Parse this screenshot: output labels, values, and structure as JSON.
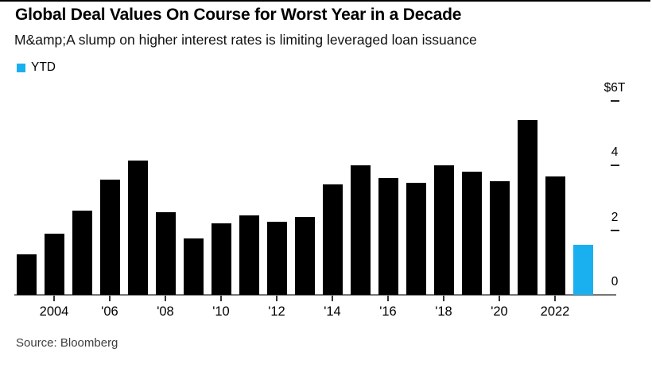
{
  "header": {
    "title": "Global Deal Values On Course for Worst Year in a Decade",
    "subtitle": "M&amp;A slump on higher interest rates is limiting leveraged loan issuance"
  },
  "footer": {
    "source": "Source: Bloomberg"
  },
  "colors": {
    "bar_black": "#000000",
    "ytd_blue": "#1ab0f0",
    "axis_gray": "#767676",
    "source_text": "#3d3d3d"
  },
  "chart_data": {
    "type": "bar",
    "title": "Global Deal Values On Course for Worst Year in a Decade",
    "subtitle": "M&amp;A slump on higher interest rates is limiting leveraged loan issuance",
    "unit": "trillion USD",
    "categories": [
      2003,
      2004,
      2005,
      2006,
      2007,
      2008,
      2009,
      2010,
      2011,
      2012,
      2013,
      2014,
      2015,
      2016,
      2017,
      2018,
      2019,
      2020,
      2021,
      2022,
      2023
    ],
    "series": [
      {
        "name": "Global deal values",
        "values": [
          1.25,
          1.9,
          2.6,
          3.55,
          4.15,
          2.55,
          1.75,
          2.2,
          2.45,
          2.25,
          2.4,
          3.4,
          4.0,
          3.6,
          3.45,
          4.0,
          3.8,
          3.5,
          5.4,
          3.65,
          1.55
        ]
      }
    ],
    "bar_color": "#000000",
    "highlight": {
      "category": 2023,
      "label": "YTD",
      "color": "#1ab0f0"
    },
    "legend": [
      {
        "label": "YTD",
        "color": "#1ab0f0"
      }
    ],
    "legend_position": "top-left",
    "axis_side": "right",
    "grid": "none",
    "ylim": [
      0,
      6
    ],
    "y_ticks": [
      {
        "value": 6,
        "label": "$6T"
      },
      {
        "value": 4,
        "label": "4"
      },
      {
        "value": 2,
        "label": "2"
      },
      {
        "value": 0,
        "label": "0"
      }
    ],
    "x_ticks": [
      {
        "value": 2004,
        "label": "2004"
      },
      {
        "value": 2006,
        "label": "'06"
      },
      {
        "value": 2008,
        "label": "'08"
      },
      {
        "value": 2010,
        "label": "'10"
      },
      {
        "value": 2012,
        "label": "'12"
      },
      {
        "value": 2014,
        "label": "'14"
      },
      {
        "value": 2016,
        "label": "'16"
      },
      {
        "value": 2018,
        "label": "'18"
      },
      {
        "value": 2020,
        "label": "'20"
      },
      {
        "value": 2022,
        "label": "2022"
      }
    ]
  }
}
